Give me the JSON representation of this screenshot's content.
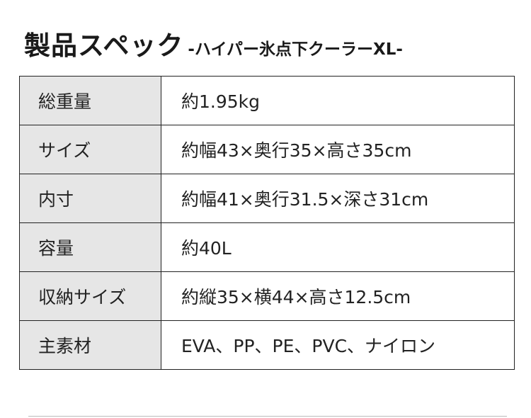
{
  "title": {
    "main": "製品スペック",
    "sub": "-ハイパー氷点下クーラーXL-"
  },
  "spec_rows": [
    {
      "label": "総重量",
      "value": "約1.95kg"
    },
    {
      "label": "サイズ",
      "value": "約幅43×奥行35×高さ35cm"
    },
    {
      "label": "内寸",
      "value": "約幅41×奥行31.5×深さ31cm"
    },
    {
      "label": "容量",
      "value": "約40L"
    },
    {
      "label": "収納サイズ",
      "value": "約縦35×横44×高さ12.5cm"
    },
    {
      "label": "主素材",
      "value": "EVA、PP、PE、PVC、ナイロン"
    }
  ]
}
